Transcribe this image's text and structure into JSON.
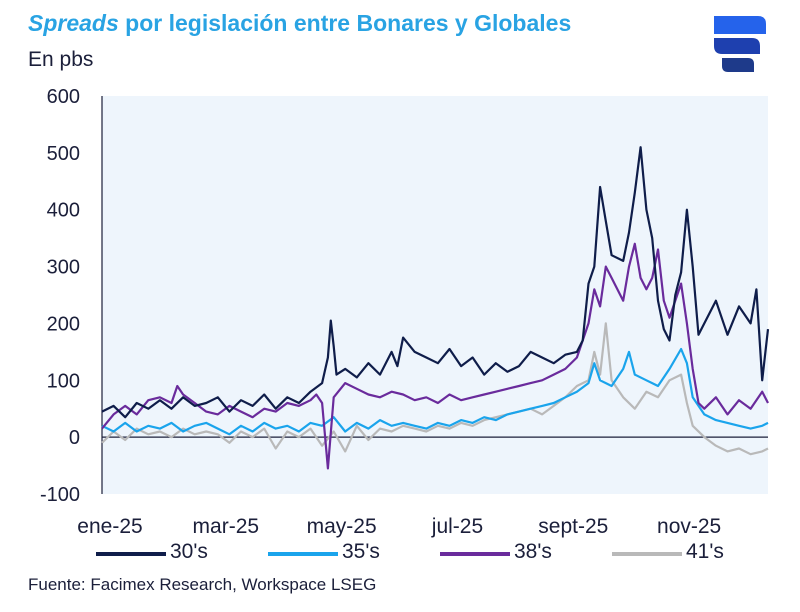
{
  "header": {
    "title_italic": "Spreads",
    "title_rest": " por legislación entre Bonares y Globales",
    "subtitle": "En pbs"
  },
  "footer": {
    "source": "Fuente: Facimex Research, Workspace LSEG"
  },
  "colors": {
    "title": "#29a3e3",
    "text": "#1b1f3a",
    "plot_bg": "#eef5fc",
    "logo_blue": "#1e3a8a",
    "logo_light": "#3b82f6"
  },
  "chart_data": {
    "type": "line",
    "title": "Spreads por legislación entre Bonares y Globales",
    "ylabel": "En pbs",
    "xlabel": "",
    "ylim": [
      -100,
      600
    ],
    "yticks": [
      600,
      500,
      400,
      300,
      200,
      100,
      0,
      -100
    ],
    "x_range": [
      0,
      11.5
    ],
    "x_ticks": [
      {
        "label": "ene-25",
        "x": 0
      },
      {
        "label": "mar-25",
        "x": 2
      },
      {
        "label": "may-25",
        "x": 4
      },
      {
        "label": "jul-25",
        "x": 6
      },
      {
        "label": "sept-25",
        "x": 8
      },
      {
        "label": "nov-25",
        "x": 10
      }
    ],
    "legend_position": "bottom",
    "series": [
      {
        "name": "30's",
        "color": "#0f1d4a",
        "points": [
          [
            0,
            45
          ],
          [
            0.2,
            55
          ],
          [
            0.4,
            35
          ],
          [
            0.6,
            60
          ],
          [
            0.8,
            50
          ],
          [
            1,
            65
          ],
          [
            1.2,
            50
          ],
          [
            1.4,
            70
          ],
          [
            1.6,
            55
          ],
          [
            1.8,
            60
          ],
          [
            2,
            70
          ],
          [
            2.2,
            45
          ],
          [
            2.4,
            65
          ],
          [
            2.6,
            55
          ],
          [
            2.8,
            75
          ],
          [
            3,
            50
          ],
          [
            3.2,
            70
          ],
          [
            3.4,
            60
          ],
          [
            3.6,
            80
          ],
          [
            3.8,
            95
          ],
          [
            3.9,
            140
          ],
          [
            3.95,
            205
          ],
          [
            4,
            160
          ],
          [
            4.05,
            110
          ],
          [
            4.2,
            120
          ],
          [
            4.4,
            105
          ],
          [
            4.6,
            130
          ],
          [
            4.8,
            110
          ],
          [
            5,
            150
          ],
          [
            5.1,
            125
          ],
          [
            5.2,
            175
          ],
          [
            5.4,
            150
          ],
          [
            5.6,
            140
          ],
          [
            5.8,
            130
          ],
          [
            6,
            155
          ],
          [
            6.2,
            125
          ],
          [
            6.4,
            140
          ],
          [
            6.6,
            110
          ],
          [
            6.8,
            130
          ],
          [
            7,
            115
          ],
          [
            7.2,
            125
          ],
          [
            7.4,
            150
          ],
          [
            7.6,
            140
          ],
          [
            7.8,
            130
          ],
          [
            8,
            145
          ],
          [
            8.2,
            150
          ],
          [
            8.3,
            170
          ],
          [
            8.4,
            270
          ],
          [
            8.5,
            300
          ],
          [
            8.6,
            440
          ],
          [
            8.7,
            380
          ],
          [
            8.8,
            320
          ],
          [
            9,
            310
          ],
          [
            9.1,
            360
          ],
          [
            9.2,
            430
          ],
          [
            9.3,
            510
          ],
          [
            9.4,
            400
          ],
          [
            9.5,
            350
          ],
          [
            9.6,
            240
          ],
          [
            9.7,
            190
          ],
          [
            9.8,
            170
          ],
          [
            9.9,
            250
          ],
          [
            10,
            290
          ],
          [
            10.1,
            400
          ],
          [
            10.2,
            300
          ],
          [
            10.3,
            180
          ],
          [
            10.4,
            200
          ],
          [
            10.6,
            240
          ],
          [
            10.8,
            180
          ],
          [
            11,
            230
          ],
          [
            11.2,
            200
          ],
          [
            11.3,
            260
          ],
          [
            11.4,
            100
          ],
          [
            11.5,
            190
          ]
        ]
      },
      {
        "name": "35's",
        "color": "#1aa4ec",
        "points": [
          [
            0,
            20
          ],
          [
            0.2,
            10
          ],
          [
            0.4,
            25
          ],
          [
            0.6,
            10
          ],
          [
            0.8,
            20
          ],
          [
            1,
            15
          ],
          [
            1.2,
            25
          ],
          [
            1.4,
            10
          ],
          [
            1.6,
            20
          ],
          [
            1.8,
            25
          ],
          [
            2,
            15
          ],
          [
            2.2,
            5
          ],
          [
            2.4,
            20
          ],
          [
            2.6,
            10
          ],
          [
            2.8,
            25
          ],
          [
            3,
            15
          ],
          [
            3.2,
            20
          ],
          [
            3.4,
            10
          ],
          [
            3.6,
            25
          ],
          [
            3.8,
            20
          ],
          [
            4,
            35
          ],
          [
            4.2,
            10
          ],
          [
            4.4,
            25
          ],
          [
            4.6,
            15
          ],
          [
            4.8,
            30
          ],
          [
            5,
            20
          ],
          [
            5.2,
            25
          ],
          [
            5.4,
            20
          ],
          [
            5.6,
            15
          ],
          [
            5.8,
            25
          ],
          [
            6,
            20
          ],
          [
            6.2,
            30
          ],
          [
            6.4,
            25
          ],
          [
            6.6,
            35
          ],
          [
            6.8,
            30
          ],
          [
            7,
            40
          ],
          [
            7.2,
            45
          ],
          [
            7.4,
            50
          ],
          [
            7.6,
            55
          ],
          [
            7.8,
            60
          ],
          [
            8,
            70
          ],
          [
            8.2,
            80
          ],
          [
            8.4,
            95
          ],
          [
            8.5,
            130
          ],
          [
            8.6,
            100
          ],
          [
            8.8,
            90
          ],
          [
            9,
            120
          ],
          [
            9.1,
            150
          ],
          [
            9.2,
            110
          ],
          [
            9.4,
            100
          ],
          [
            9.6,
            90
          ],
          [
            9.8,
            120
          ],
          [
            10,
            155
          ],
          [
            10.1,
            130
          ],
          [
            10.2,
            70
          ],
          [
            10.4,
            40
          ],
          [
            10.6,
            30
          ],
          [
            10.8,
            25
          ],
          [
            11,
            20
          ],
          [
            11.2,
            15
          ],
          [
            11.4,
            20
          ],
          [
            11.5,
            25
          ]
        ]
      },
      {
        "name": "38's",
        "color": "#6a2b9c",
        "points": [
          [
            0,
            15
          ],
          [
            0.2,
            40
          ],
          [
            0.4,
            55
          ],
          [
            0.6,
            40
          ],
          [
            0.8,
            65
          ],
          [
            1,
            70
          ],
          [
            1.2,
            60
          ],
          [
            1.3,
            90
          ],
          [
            1.4,
            75
          ],
          [
            1.6,
            60
          ],
          [
            1.8,
            45
          ],
          [
            2,
            40
          ],
          [
            2.2,
            55
          ],
          [
            2.4,
            45
          ],
          [
            2.6,
            35
          ],
          [
            2.8,
            50
          ],
          [
            3,
            45
          ],
          [
            3.2,
            60
          ],
          [
            3.4,
            55
          ],
          [
            3.6,
            65
          ],
          [
            3.7,
            75
          ],
          [
            3.8,
            60
          ],
          [
            3.9,
            -55
          ],
          [
            4,
            70
          ],
          [
            4.2,
            95
          ],
          [
            4.4,
            85
          ],
          [
            4.6,
            75
          ],
          [
            4.8,
            70
          ],
          [
            5,
            80
          ],
          [
            5.2,
            75
          ],
          [
            5.4,
            65
          ],
          [
            5.6,
            70
          ],
          [
            5.8,
            60
          ],
          [
            6,
            75
          ],
          [
            6.2,
            65
          ],
          [
            6.4,
            70
          ],
          [
            6.6,
            75
          ],
          [
            6.8,
            80
          ],
          [
            7,
            85
          ],
          [
            7.2,
            90
          ],
          [
            7.4,
            95
          ],
          [
            7.6,
            100
          ],
          [
            7.8,
            110
          ],
          [
            8,
            120
          ],
          [
            8.2,
            140
          ],
          [
            8.4,
            200
          ],
          [
            8.5,
            260
          ],
          [
            8.6,
            230
          ],
          [
            8.7,
            300
          ],
          [
            8.8,
            280
          ],
          [
            9,
            240
          ],
          [
            9.1,
            300
          ],
          [
            9.2,
            340
          ],
          [
            9.3,
            280
          ],
          [
            9.4,
            260
          ],
          [
            9.5,
            280
          ],
          [
            9.6,
            330
          ],
          [
            9.7,
            240
          ],
          [
            9.8,
            210
          ],
          [
            10,
            270
          ],
          [
            10.1,
            200
          ],
          [
            10.2,
            120
          ],
          [
            10.3,
            60
          ],
          [
            10.4,
            50
          ],
          [
            10.6,
            70
          ],
          [
            10.8,
            40
          ],
          [
            11,
            65
          ],
          [
            11.2,
            50
          ],
          [
            11.4,
            80
          ],
          [
            11.5,
            60
          ]
        ]
      },
      {
        "name": "41's",
        "color": "#b9b9b9",
        "points": [
          [
            0,
            -10
          ],
          [
            0.2,
            10
          ],
          [
            0.4,
            -5
          ],
          [
            0.6,
            15
          ],
          [
            0.8,
            5
          ],
          [
            1,
            10
          ],
          [
            1.2,
            0
          ],
          [
            1.4,
            15
          ],
          [
            1.6,
            5
          ],
          [
            1.8,
            10
          ],
          [
            2,
            5
          ],
          [
            2.2,
            -10
          ],
          [
            2.4,
            10
          ],
          [
            2.6,
            0
          ],
          [
            2.8,
            15
          ],
          [
            3,
            -20
          ],
          [
            3.2,
            10
          ],
          [
            3.4,
            0
          ],
          [
            3.6,
            15
          ],
          [
            3.8,
            -15
          ],
          [
            4,
            10
          ],
          [
            4.2,
            -25
          ],
          [
            4.4,
            20
          ],
          [
            4.6,
            -5
          ],
          [
            4.8,
            15
          ],
          [
            5,
            10
          ],
          [
            5.2,
            20
          ],
          [
            5.4,
            15
          ],
          [
            5.6,
            10
          ],
          [
            5.8,
            20
          ],
          [
            6,
            15
          ],
          [
            6.2,
            25
          ],
          [
            6.4,
            20
          ],
          [
            6.6,
            30
          ],
          [
            6.8,
            35
          ],
          [
            7,
            40
          ],
          [
            7.2,
            45
          ],
          [
            7.4,
            50
          ],
          [
            7.6,
            40
          ],
          [
            7.8,
            55
          ],
          [
            8,
            70
          ],
          [
            8.2,
            90
          ],
          [
            8.4,
            100
          ],
          [
            8.5,
            150
          ],
          [
            8.6,
            110
          ],
          [
            8.7,
            200
          ],
          [
            8.8,
            100
          ],
          [
            9,
            70
          ],
          [
            9.2,
            50
          ],
          [
            9.4,
            80
          ],
          [
            9.6,
            70
          ],
          [
            9.8,
            100
          ],
          [
            10,
            110
          ],
          [
            10.1,
            60
          ],
          [
            10.2,
            20
          ],
          [
            10.4,
            0
          ],
          [
            10.6,
            -15
          ],
          [
            10.8,
            -25
          ],
          [
            11,
            -20
          ],
          [
            11.2,
            -30
          ],
          [
            11.4,
            -25
          ],
          [
            11.5,
            -20
          ]
        ]
      }
    ]
  }
}
